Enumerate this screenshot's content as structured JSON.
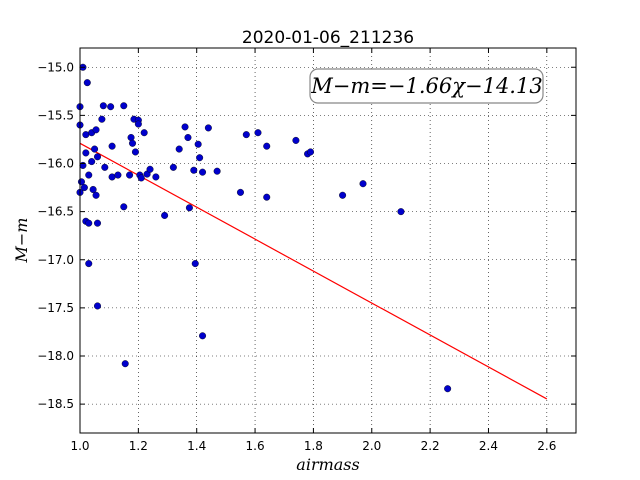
{
  "chart_data": {
    "type": "scatter",
    "title": "2020-01-06_211236",
    "xlabel": "airmass",
    "ylabel": "M−m",
    "xlim": [
      1.0,
      2.7
    ],
    "ylim": [
      -18.8,
      -14.8
    ],
    "y_inverted": true,
    "grid": true,
    "x_ticks": [
      1.0,
      1.2,
      1.4,
      1.6,
      1.8,
      2.0,
      2.2,
      2.4,
      2.6
    ],
    "x_tick_labels": [
      "1.0",
      "1.2",
      "1.4",
      "1.6",
      "1.8",
      "2.0",
      "2.2",
      "2.4",
      "2.6"
    ],
    "y_ticks": [
      -15.0,
      -15.5,
      -16.0,
      -16.5,
      -17.0,
      -17.5,
      -18.0,
      -18.5
    ],
    "y_tick_labels": [
      "−15.0",
      "−15.5",
      "−16.0",
      "−16.5",
      "−17.0",
      "−17.5",
      "−18.0",
      "−18.5"
    ],
    "annotation": "M−m=−1.66χ−14.13",
    "point_color": "#0000cc",
    "fit_color": "#ff0000",
    "fit": {
      "slope": -1.66,
      "intercept": -14.13,
      "x_range": [
        1.0,
        2.6
      ]
    },
    "points": [
      [
        1.0,
        -15.6
      ],
      [
        1.0,
        -15.41
      ],
      [
        1.0,
        -16.3
      ],
      [
        1.005,
        -16.19
      ],
      [
        1.01,
        -15.0
      ],
      [
        1.01,
        -16.02
      ],
      [
        1.015,
        -16.25
      ],
      [
        1.02,
        -15.89
      ],
      [
        1.02,
        -15.7
      ],
      [
        1.02,
        -16.6
      ],
      [
        1.025,
        -15.16
      ],
      [
        1.03,
        -16.12
      ],
      [
        1.03,
        -16.62
      ],
      [
        1.03,
        -17.04
      ],
      [
        1.04,
        -15.68
      ],
      [
        1.04,
        -15.98
      ],
      [
        1.045,
        -16.27
      ],
      [
        1.05,
        -15.85
      ],
      [
        1.055,
        -15.65
      ],
      [
        1.055,
        -16.33
      ],
      [
        1.06,
        -15.93
      ],
      [
        1.06,
        -16.62
      ],
      [
        1.06,
        -17.48
      ],
      [
        1.075,
        -15.54
      ],
      [
        1.08,
        -15.4
      ],
      [
        1.085,
        -16.04
      ],
      [
        1.105,
        -15.41
      ],
      [
        1.11,
        -15.82
      ],
      [
        1.11,
        -16.14
      ],
      [
        1.13,
        -16.12
      ],
      [
        1.15,
        -15.4
      ],
      [
        1.15,
        -16.45
      ],
      [
        1.155,
        -18.08
      ],
      [
        1.17,
        -16.12
      ],
      [
        1.175,
        -15.73
      ],
      [
        1.18,
        -15.79
      ],
      [
        1.185,
        -15.54
      ],
      [
        1.19,
        -15.88
      ],
      [
        1.2,
        -15.55
      ],
      [
        1.2,
        -15.59
      ],
      [
        1.205,
        -16.12
      ],
      [
        1.21,
        -16.15
      ],
      [
        1.22,
        -15.68
      ],
      [
        1.23,
        -16.11
      ],
      [
        1.24,
        -16.06
      ],
      [
        1.26,
        -16.14
      ],
      [
        1.29,
        -16.54
      ],
      [
        1.32,
        -16.04
      ],
      [
        1.34,
        -15.85
      ],
      [
        1.36,
        -15.62
      ],
      [
        1.37,
        -15.73
      ],
      [
        1.375,
        -16.46
      ],
      [
        1.39,
        -16.07
      ],
      [
        1.395,
        -17.04
      ],
      [
        1.405,
        -15.8
      ],
      [
        1.41,
        -15.94
      ],
      [
        1.42,
        -16.09
      ],
      [
        1.42,
        -17.79
      ],
      [
        1.44,
        -15.63
      ],
      [
        1.47,
        -16.08
      ],
      [
        1.55,
        -16.3
      ],
      [
        1.57,
        -15.7
      ],
      [
        1.61,
        -15.68
      ],
      [
        1.64,
        -15.82
      ],
      [
        1.64,
        -16.35
      ],
      [
        1.74,
        -15.76
      ],
      [
        1.78,
        -15.9
      ],
      [
        1.79,
        -15.88
      ],
      [
        1.9,
        -16.33
      ],
      [
        1.97,
        -16.21
      ],
      [
        2.1,
        -16.5
      ],
      [
        2.26,
        -18.34
      ]
    ]
  }
}
